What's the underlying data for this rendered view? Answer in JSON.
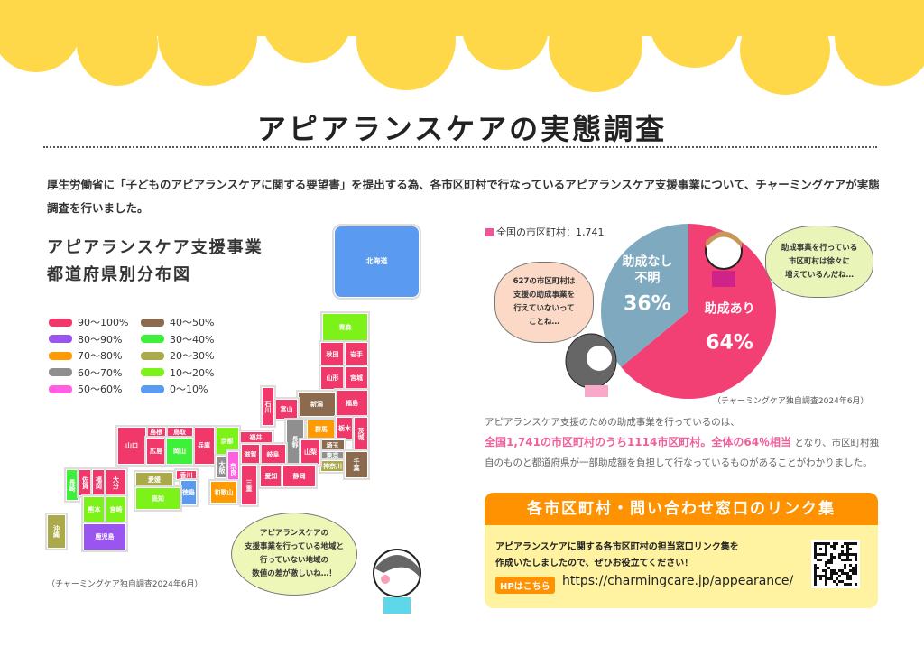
{
  "header": {
    "title": "アピアランスケアの実態調査"
  },
  "intro": "厚生労働省に「子どものアピアランスケアに関する要望書」を提出する為、各市区町村で行なっているアピアランスケア支援事業について、チャーミングケアが実態調査を行いました。",
  "map": {
    "title_line1": "アピアランスケア支援事業",
    "title_line2": "都道府県別分布図",
    "legend": [
      {
        "label": "90〜100%",
        "color": "#f0386b"
      },
      {
        "label": "80〜90%",
        "color": "#9a55f0"
      },
      {
        "label": "70〜80%",
        "color": "#ff9a00"
      },
      {
        "label": "60〜70%",
        "color": "#8f8f8f"
      },
      {
        "label": "50〜60%",
        "color": "#ff5fe0"
      },
      {
        "label": "40〜50%",
        "color": "#8b6a4e"
      },
      {
        "label": "30〜40%",
        "color": "#3ef03a"
      },
      {
        "label": "20〜30%",
        "color": "#aaaa4a"
      },
      {
        "label": "10〜20%",
        "color": "#7df218"
      },
      {
        "label": "0〜10%",
        "color": "#5a9af0"
      }
    ],
    "prefectures": [
      {
        "name": "北海道",
        "range": "0〜10%"
      },
      {
        "name": "青森",
        "range": "10〜20%"
      },
      {
        "name": "秋田",
        "range": "90〜100%"
      },
      {
        "name": "岩手",
        "range": "90〜100%"
      },
      {
        "name": "山形",
        "range": "90〜100%"
      },
      {
        "name": "宮城",
        "range": "90〜100%"
      },
      {
        "name": "福島",
        "range": "90〜100%"
      },
      {
        "name": "新潟",
        "range": "40〜50%"
      },
      {
        "name": "富山",
        "range": "90〜100%"
      },
      {
        "name": "石川",
        "range": "90〜100%"
      },
      {
        "name": "長野",
        "range": "60〜70%"
      },
      {
        "name": "群馬",
        "range": "70〜80%"
      },
      {
        "name": "栃木",
        "range": "90〜100%"
      },
      {
        "name": "茨城",
        "range": "90〜100%"
      },
      {
        "name": "埼玉",
        "range": "40〜50%"
      },
      {
        "name": "東京",
        "range": "60〜70%"
      },
      {
        "name": "神奈川",
        "range": "20〜30%"
      },
      {
        "name": "千葉",
        "range": "40〜50%"
      },
      {
        "name": "山梨",
        "range": "90〜100%"
      },
      {
        "name": "福井",
        "range": "90〜100%"
      },
      {
        "name": "岐阜",
        "range": "90〜100%"
      },
      {
        "name": "滋賀",
        "range": "90〜100%"
      },
      {
        "name": "京都",
        "range": "10〜20%"
      },
      {
        "name": "兵庫",
        "range": "90〜100%"
      },
      {
        "name": "鳥取",
        "range": "90〜100%"
      },
      {
        "name": "島根",
        "range": "90〜100%"
      },
      {
        "name": "山口",
        "range": "90〜100%"
      },
      {
        "name": "広島",
        "range": "90〜100%"
      },
      {
        "name": "岡山",
        "range": "30〜40%"
      },
      {
        "name": "大阪",
        "range": "60〜70%"
      },
      {
        "name": "奈良",
        "range": "50〜60%"
      },
      {
        "name": "三重",
        "range": "90〜100%"
      },
      {
        "name": "愛知",
        "range": "90〜100%"
      },
      {
        "name": "静岡",
        "range": "90〜100%"
      },
      {
        "name": "和歌山",
        "range": "70〜80%"
      },
      {
        "name": "香川",
        "range": "90〜100%"
      },
      {
        "name": "徳島",
        "range": "0〜10%"
      },
      {
        "name": "愛媛",
        "range": "20〜30%"
      },
      {
        "name": "高知",
        "range": "10〜20%"
      },
      {
        "name": "長崎",
        "range": "30〜40%"
      },
      {
        "name": "佐賀",
        "range": "90〜100%"
      },
      {
        "name": "福岡",
        "range": "90〜100%"
      },
      {
        "name": "大分",
        "range": "90〜100%"
      },
      {
        "name": "熊本",
        "range": "10〜20%"
      },
      {
        "name": "宮崎",
        "range": "10〜20%"
      },
      {
        "name": "鹿児島",
        "range": "80〜90%"
      },
      {
        "name": "沖縄",
        "range": "20〜30%"
      }
    ],
    "source": "（チャーミングケア独自調査2024年6月）",
    "bubble": "アピアランスケアの\n支援事業を行っている地域と\n行っていない地域の\n数値の差が激しいね…！"
  },
  "pie": {
    "total_label": "全国の市区町村：1,741",
    "total_color": "#f0559a",
    "source": "（チャーミングケア独自調査2024年6月）",
    "bubble_left": "627の市区町村は\n支援の助成事業を\n行えていないって\nことね…",
    "bubble_right": "助成事業を行っている\n市区町村は徐々に\n増えているんだね…"
  },
  "chart_data": {
    "type": "pie",
    "slices": [
      {
        "label": "助成あり",
        "value": 64,
        "value_label": "64%",
        "color": "#f23f74"
      },
      {
        "label": "助成なし\n不明",
        "value": 36,
        "value_label": "36%",
        "color": "#7fa9be"
      }
    ]
  },
  "description": {
    "line1": "アピアランスケア支援のための助成事業を行っているのは、",
    "highlight": "全国1,741の市区町村のうち1114市区町村。全体の64％相当",
    "rest": "となり、市区町村独自のものと都道府県が一部助成額を負担して行なっているものがあることがわかりました。"
  },
  "links": {
    "heading": "各市区町村・問い合わせ窓口のリンク集",
    "text_line1": "アピアランスケアに関する各市区町村の担当窓口リンク集を",
    "text_line2": "作成いたしましたので、ぜひお役立てください！",
    "hp_label": "HPはこちら",
    "url": "https://charmingcare.jp/appearance/"
  }
}
